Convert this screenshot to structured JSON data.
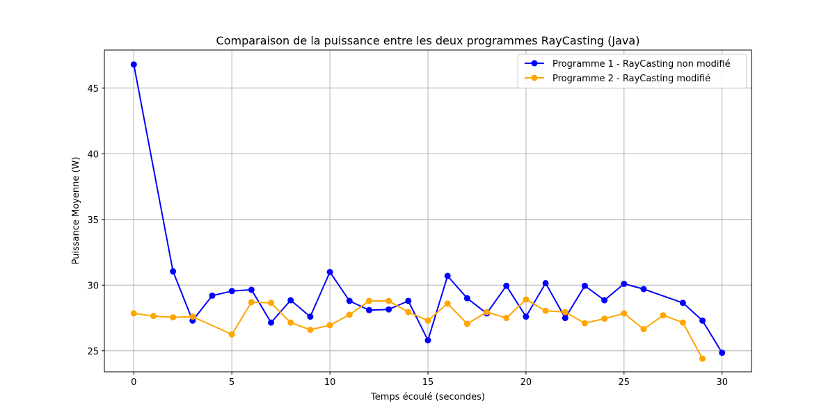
{
  "chart_data": {
    "type": "line",
    "title": "Comparaison de la puissance entre les deux programmes RayCasting (Java)",
    "xlabel": "Temps écoulé (secondes)",
    "ylabel": "Puissance Moyenne (W)",
    "xlim": [
      -1.5,
      31.5
    ],
    "ylim": [
      23.4,
      47.9
    ],
    "xticks": [
      0,
      5,
      10,
      15,
      20,
      25,
      30
    ],
    "yticks": [
      25,
      30,
      35,
      40,
      45
    ],
    "grid": true,
    "legend_position": "top-right",
    "series": [
      {
        "name": "Programme 1 - RayCasting non modifié",
        "color": "#0000ff",
        "x": [
          0,
          2,
          3,
          4,
          5,
          6,
          7,
          8,
          9,
          10,
          11,
          12,
          13,
          14,
          15,
          16,
          17,
          18,
          19,
          20,
          21,
          22,
          23,
          24,
          25,
          26,
          28,
          29,
          30
        ],
        "y": [
          46.8,
          31.05,
          27.3,
          29.2,
          29.55,
          29.65,
          27.15,
          28.85,
          27.6,
          31.0,
          28.8,
          28.1,
          28.15,
          28.8,
          25.8,
          30.7,
          29.0,
          27.85,
          29.95,
          27.6,
          30.15,
          27.5,
          29.95,
          28.85,
          30.1,
          29.7,
          28.65,
          27.3,
          24.85
        ]
      },
      {
        "name": "Programme 2 - RayCasting modifié",
        "color": "#ffa500",
        "x": [
          0,
          1,
          2,
          3,
          5,
          6,
          7,
          8,
          9,
          10,
          11,
          12,
          13,
          14,
          15,
          16,
          17,
          18,
          19,
          20,
          21,
          22,
          23,
          24,
          25,
          26,
          27,
          28,
          29
        ],
        "y": [
          27.85,
          27.65,
          27.55,
          27.6,
          26.25,
          28.7,
          28.65,
          27.15,
          26.6,
          26.95,
          27.75,
          28.8,
          28.8,
          27.95,
          27.3,
          28.6,
          27.05,
          27.95,
          27.5,
          28.9,
          28.05,
          27.95,
          27.1,
          27.45,
          27.85,
          26.65,
          27.7,
          27.15,
          24.4
        ]
      }
    ]
  }
}
